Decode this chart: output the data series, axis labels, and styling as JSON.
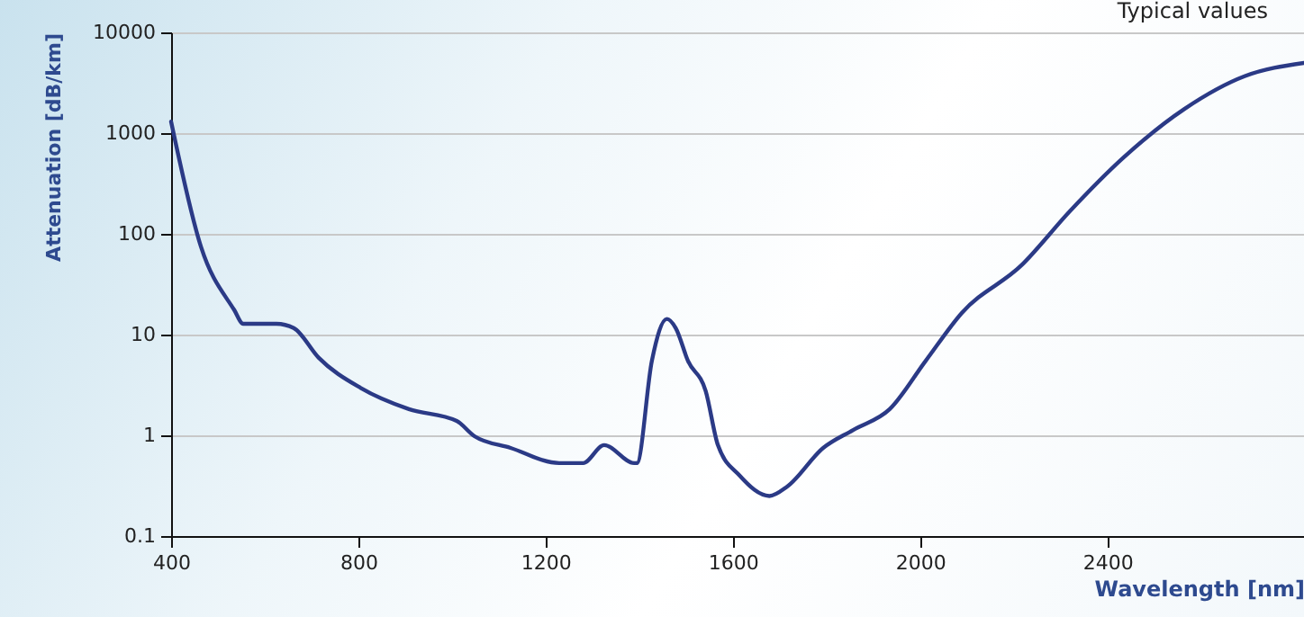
{
  "chart_data": {
    "type": "line",
    "xlabel": "Wavelength [nm]",
    "ylabel": "Attenuation [dB/km]",
    "annotations": [
      "Typical values"
    ],
    "x": [
      400,
      464,
      535,
      554,
      625,
      662,
      715,
      805,
      908,
      1010,
      1048,
      1125,
      1229,
      1280,
      1325,
      1389,
      1395,
      1427,
      1459,
      1478,
      1504,
      1542,
      1568,
      1614,
      1678,
      1716,
      1793,
      1857,
      1935,
      2012,
      2089,
      2217,
      2320,
      2435,
      2564,
      2693,
      2820
    ],
    "series": [
      {
        "color": "#2b3a86",
        "values": [
          1300,
          74,
          17.5,
          12.8,
          12.8,
          11.6,
          5.9,
          2.95,
          1.82,
          1.39,
          0.98,
          0.75,
          0.53,
          0.53,
          0.8,
          0.53,
          0.53,
          5.5,
          14.3,
          11.6,
          5.5,
          2.75,
          0.8,
          0.4,
          0.25,
          0.31,
          0.75,
          1.13,
          1.82,
          5.5,
          16.4,
          49,
          168,
          575,
          1730,
          3670,
          4970
        ]
      }
    ],
    "xlim": [
      400,
      2820
    ],
    "xticks": [
      400,
      800,
      1200,
      1600,
      2000,
      2400
    ],
    "ylim": [
      0.1,
      10000
    ],
    "yticks": [
      0.1,
      1,
      10,
      100,
      1000,
      10000
    ],
    "log": "y",
    "grid": "y",
    "marker": "none",
    "line_style": "solid"
  }
}
